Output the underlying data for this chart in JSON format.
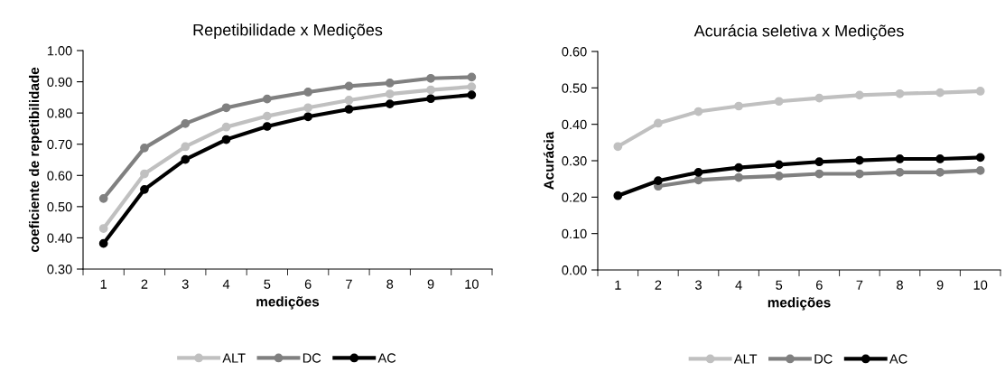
{
  "chart_data": [
    {
      "type": "line",
      "title": "Repetibilidade x Medições",
      "xlabel": "medições",
      "ylabel": "coeficiente de repetibilidade",
      "categories": [
        "1",
        "2",
        "3",
        "4",
        "5",
        "6",
        "7",
        "8",
        "9",
        "10"
      ],
      "series": [
        {
          "name": "ALT",
          "color": "#c0c0c0",
          "values": [
            0.43,
            0.605,
            0.692,
            0.755,
            0.79,
            0.817,
            0.841,
            0.861,
            0.874,
            0.884
          ]
        },
        {
          "name": "DC",
          "color": "#808080",
          "values": [
            0.526,
            0.688,
            0.766,
            0.817,
            0.845,
            0.867,
            0.886,
            0.896,
            0.911,
            0.915
          ]
        },
        {
          "name": "AC",
          "color": "#000000",
          "values": [
            0.382,
            0.555,
            0.651,
            0.715,
            0.757,
            0.788,
            0.812,
            0.829,
            0.846,
            0.858
          ]
        }
      ],
      "ylim": [
        0.3,
        1.0
      ],
      "yticks": [
        {
          "value": 0.3,
          "label": "0.30"
        },
        {
          "value": 0.4,
          "label": "0.40"
        },
        {
          "value": 0.5,
          "label": "0.50"
        },
        {
          "value": 0.6,
          "label": "0.60"
        },
        {
          "value": 0.7,
          "label": "0.70"
        },
        {
          "value": 0.8,
          "label": "0.80"
        },
        {
          "value": 0.9,
          "label": "0.90"
        },
        {
          "value": 1.0,
          "label": "1.00"
        }
      ],
      "grid": false,
      "legend": "bottom",
      "marker": "circle",
      "line_style": "solid"
    },
    {
      "type": "line",
      "title": "Acurácia seletiva x Medições",
      "xlabel": "medições",
      "ylabel": "Acurácia",
      "categories": [
        "1",
        "2",
        "3",
        "4",
        "5",
        "6",
        "7",
        "8",
        "9",
        "10"
      ],
      "series": [
        {
          "name": "ALT",
          "color": "#c0c0c0",
          "values": [
            0.339,
            0.403,
            0.435,
            0.45,
            0.463,
            0.472,
            0.48,
            0.484,
            0.487,
            0.491
          ]
        },
        {
          "name": "DC",
          "color": "#808080",
          "values": [
            null,
            0.23,
            0.247,
            0.254,
            0.258,
            0.264,
            0.264,
            0.268,
            0.268,
            0.273
          ]
        },
        {
          "name": "AC",
          "color": "#000000",
          "values": [
            0.204,
            0.245,
            0.268,
            0.281,
            0.289,
            0.297,
            0.301,
            0.305,
            0.305,
            0.309
          ]
        }
      ],
      "ylim": [
        0.0,
        0.6
      ],
      "yticks": [
        {
          "value": 0.0,
          "label": "0.00"
        },
        {
          "value": 0.1,
          "label": "0.10"
        },
        {
          "value": 0.2,
          "label": "0.20"
        },
        {
          "value": 0.3,
          "label": "0.30"
        },
        {
          "value": 0.4,
          "label": "0.40"
        },
        {
          "value": 0.5,
          "label": "0.50"
        },
        {
          "value": 0.6,
          "label": "0.60"
        }
      ],
      "grid": false,
      "legend": "bottom",
      "marker": "circle",
      "line_style": "solid"
    }
  ]
}
